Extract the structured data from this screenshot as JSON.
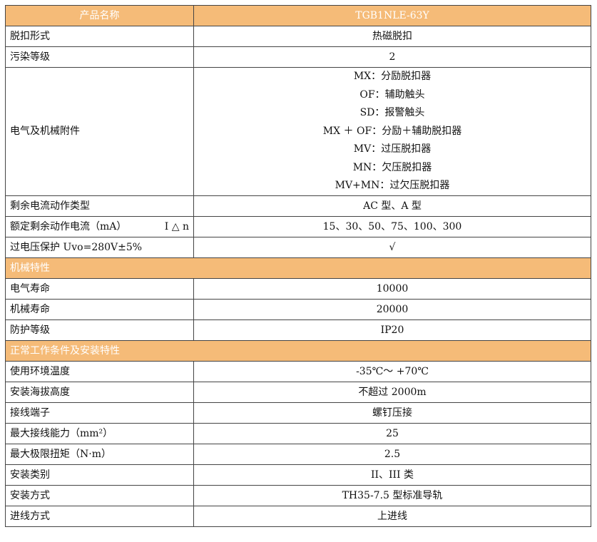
{
  "header": {
    "label": "产品名称",
    "value": "TGB1NLE-63Y"
  },
  "rows1": [
    {
      "label": "脱扣形式",
      "value": "热磁脱扣"
    },
    {
      "label": "污染等级",
      "value": "2"
    }
  ],
  "attachments": {
    "label": "电气及机械附件",
    "values": [
      "MX：分励脱扣器",
      "OF：辅助触头",
      "SD：报警触头",
      "MX ＋ OF：分励＋辅助脱扣器",
      "MV：过压脱扣器",
      "MN：欠压脱扣器",
      "MV+MN：过欠压脱扣器"
    ]
  },
  "rows2": [
    {
      "label": "剩余电流动作类型",
      "value": "AC 型、A 型"
    },
    {
      "label": "额定剩余动作电流（mA）",
      "suffix": "I △ n",
      "value": "15、30、50、75、100、300"
    },
    {
      "label": "过电压保护 Uvo=280V±5%",
      "value": "√"
    }
  ],
  "section1": "机械特性",
  "rows3": [
    {
      "label": "电气寿命",
      "value": "10000"
    },
    {
      "label": "机械寿命",
      "value": "20000"
    },
    {
      "label": "防护等级",
      "value": "IP20"
    }
  ],
  "section2": "正常工作条件及安装特性",
  "rows4": [
    {
      "label": "使用环境温度",
      "value": "-35℃～ +70℃"
    },
    {
      "label": "安装海拔高度",
      "value": "不超过 2000m"
    },
    {
      "label": "接线端子",
      "value": "螺钉压接"
    },
    {
      "label": "最大接线能力（mm²）",
      "value": "25"
    },
    {
      "label": "最大极限扭矩（N·m）",
      "value": "2.5"
    },
    {
      "label": "安装类别",
      "value": "II、III 类"
    },
    {
      "label": "安装方式",
      "value": "TH35-7.5 型标准导轨"
    },
    {
      "label": "进线方式",
      "value": "上进线"
    }
  ],
  "colors": {
    "header_bg": "#f5bb78",
    "border": "#444444"
  }
}
